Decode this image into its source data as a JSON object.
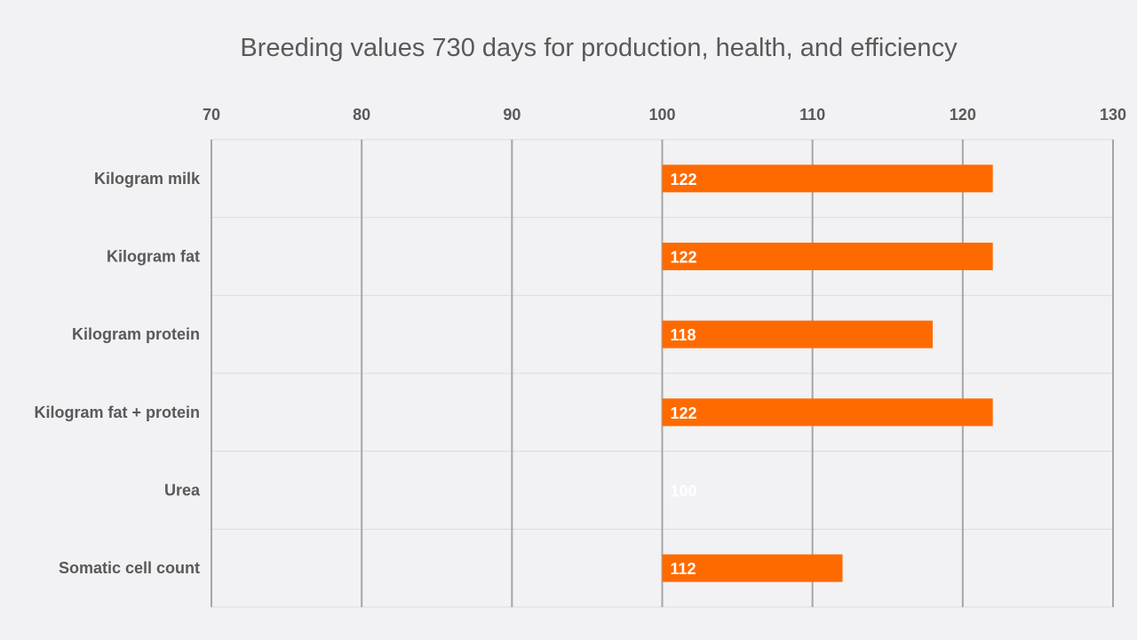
{
  "chart_data": {
    "type": "bar",
    "orientation": "horizontal",
    "title": "Breeding values 730 days for production, health, and efficiency",
    "xlabel": "",
    "ylabel": "",
    "xlim": [
      70,
      130
    ],
    "xticks": [
      70,
      80,
      90,
      100,
      110,
      120,
      130
    ],
    "x_axis_position": "top",
    "baseline": 100,
    "grid": true,
    "legend": "none",
    "bar_color": "#ff6a00",
    "label_color": "#ffffff",
    "categories": [
      "Kilogram milk",
      "Kilogram fat",
      "Kilogram protein",
      "Kilogram fat + protein",
      "Urea",
      "Somatic cell count"
    ],
    "values": [
      122,
      122,
      118,
      122,
      100,
      112
    ],
    "data_labels": [
      "122",
      "122",
      "118",
      "122",
      "100",
      "112"
    ]
  }
}
